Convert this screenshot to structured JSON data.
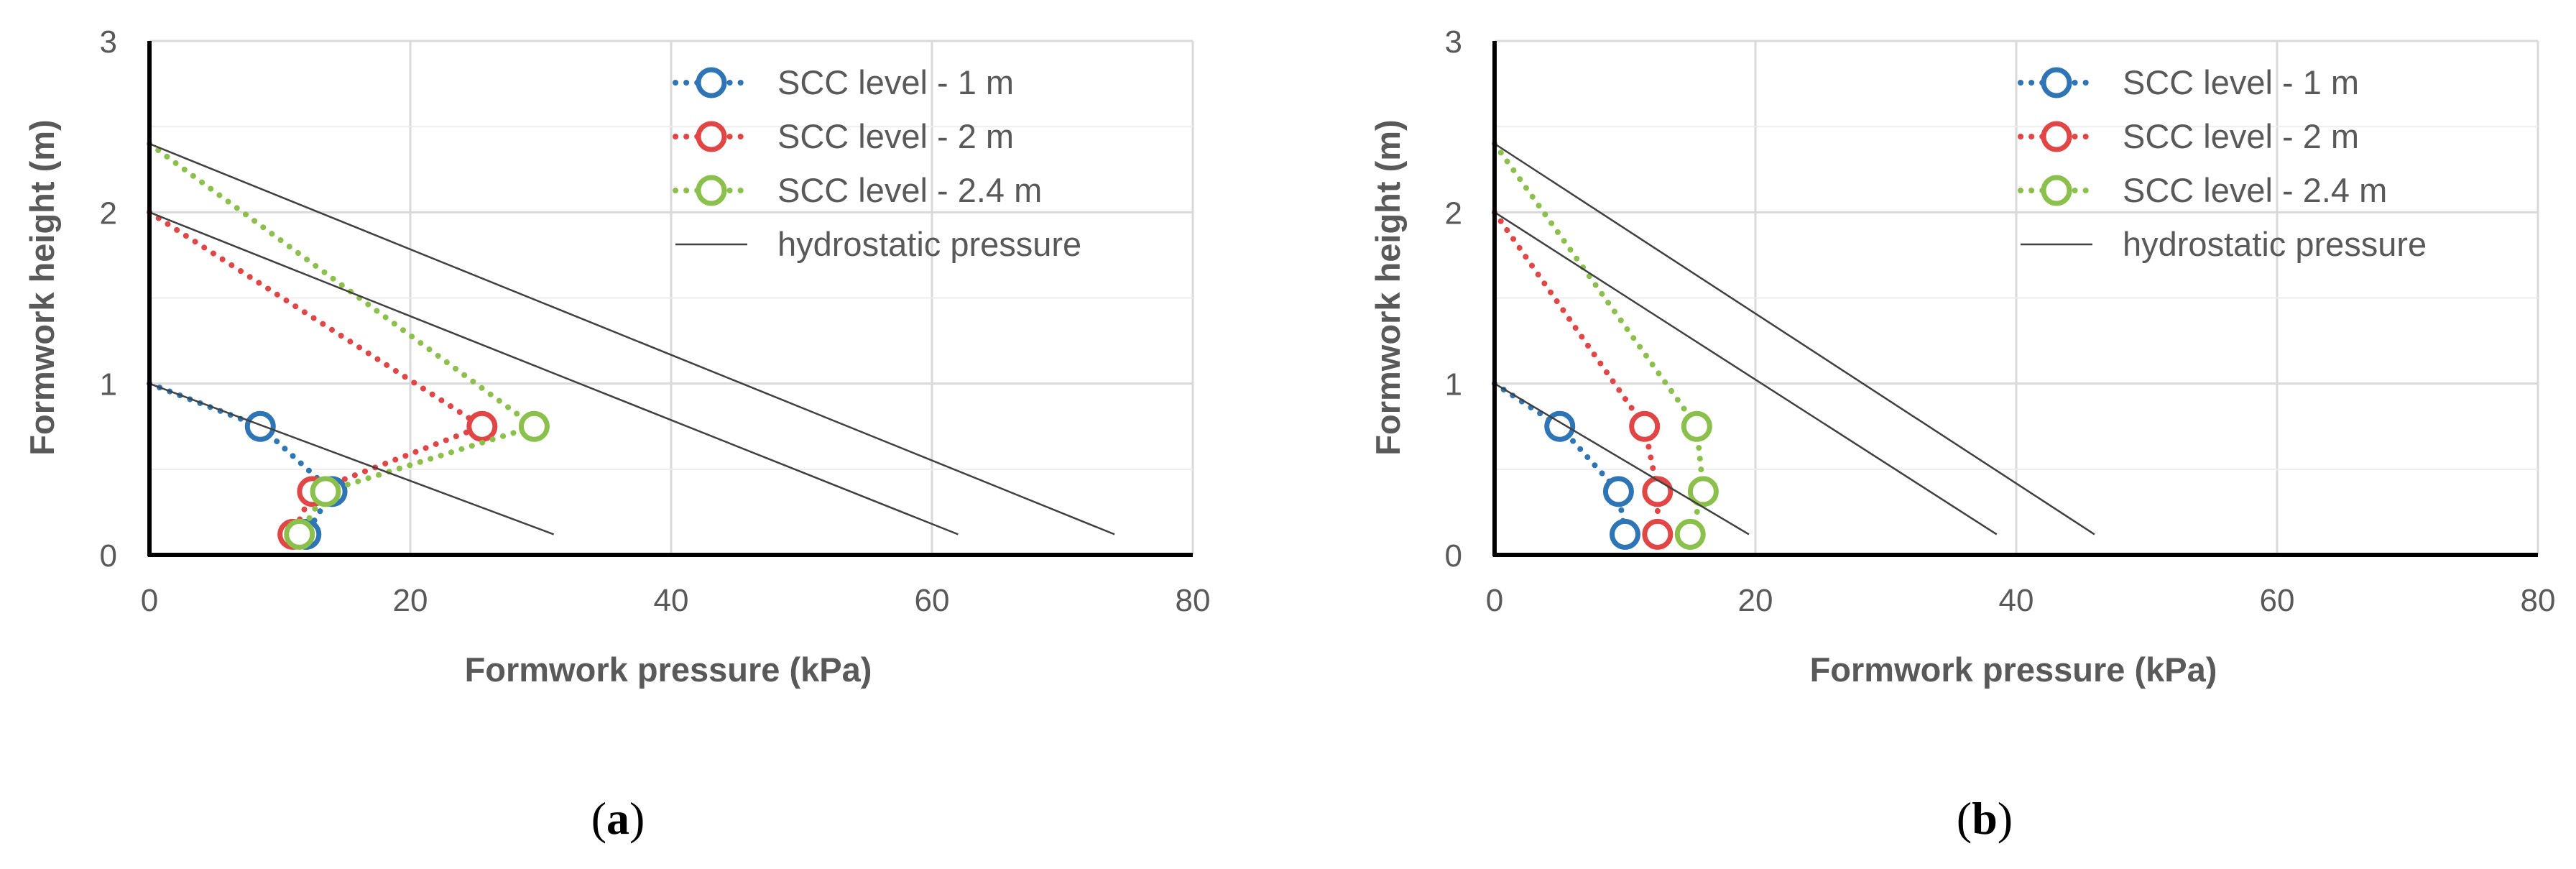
{
  "colors": {
    "scc_1m": "#2E75B6",
    "scc_2m": "#E04646",
    "scc_24m": "#8CC04C",
    "hydro": "#404040",
    "grid": "#D9D9D9",
    "axis": "#000000",
    "text": "#595959"
  },
  "chart_data": [
    {
      "type": "scatter",
      "panel_label": "a",
      "xlabel": "Formwork pressure (kPa)",
      "ylabel": "Formwork height (m)",
      "xlim": [
        0,
        80
      ],
      "ylim": [
        0,
        3
      ],
      "xticks": [
        "0",
        "20",
        "40",
        "60",
        "80"
      ],
      "yticks": [
        "0",
        "1",
        "2",
        "3"
      ],
      "legend_position": "top-right",
      "series": [
        {
          "name": "SCC level - 1 m",
          "style": "dotted-markers",
          "color_key": "scc_1m",
          "points": [
            [
              0,
              1.0
            ],
            [
              8.5,
              0.75
            ],
            [
              14,
              0.37
            ],
            [
              12,
              0.12
            ]
          ]
        },
        {
          "name": "SCC level - 2 m",
          "style": "dotted-markers",
          "color_key": "scc_2m",
          "points": [
            [
              0,
              2.0
            ],
            [
              25.5,
              0.75
            ],
            [
              12.5,
              0.37
            ],
            [
              11,
              0.12
            ]
          ]
        },
        {
          "name": "SCC level - 2.4 m",
          "style": "dotted-markers",
          "color_key": "scc_24m",
          "points": [
            [
              0,
              2.4
            ],
            [
              29.5,
              0.75
            ],
            [
              13.5,
              0.37
            ],
            [
              11.5,
              0.12
            ]
          ]
        },
        {
          "name": "hydrostatic pressure",
          "style": "line",
          "color_key": "hydro",
          "segments": [
            [
              [
                0,
                1.0
              ],
              [
                31,
                0.12
              ]
            ],
            [
              [
                0,
                2.0
              ],
              [
                62,
                0.12
              ]
            ],
            [
              [
                0,
                2.4
              ],
              [
                74,
                0.12
              ]
            ]
          ]
        }
      ]
    },
    {
      "type": "scatter",
      "panel_label": "b",
      "xlabel": "Formwork pressure (kPa)",
      "ylabel": "Formwork height (m)",
      "xlim": [
        0,
        80
      ],
      "ylim": [
        0,
        3
      ],
      "xticks": [
        "0",
        "20",
        "40",
        "60",
        "80"
      ],
      "yticks": [
        "0",
        "1",
        "2",
        "3"
      ],
      "legend_position": "top-right",
      "series": [
        {
          "name": "SCC level - 1 m",
          "style": "dotted-markers",
          "color_key": "scc_1m",
          "points": [
            [
              0,
              1.0
            ],
            [
              5,
              0.75
            ],
            [
              9.5,
              0.37
            ],
            [
              10,
              0.12
            ]
          ]
        },
        {
          "name": "SCC level - 2 m",
          "style": "dotted-markers",
          "color_key": "scc_2m",
          "points": [
            [
              0,
              2.0
            ],
            [
              11.5,
              0.75
            ],
            [
              12.5,
              0.37
            ],
            [
              12.5,
              0.12
            ]
          ]
        },
        {
          "name": "SCC level - 2.4 m",
          "style": "dotted-markers",
          "color_key": "scc_24m",
          "points": [
            [
              0,
              2.4
            ],
            [
              15.5,
              0.75
            ],
            [
              16,
              0.37
            ],
            [
              15,
              0.12
            ]
          ]
        },
        {
          "name": "hydrostatic pressure",
          "style": "line",
          "color_key": "hydro",
          "segments": [
            [
              [
                0,
                1.0
              ],
              [
                19.5,
                0.12
              ]
            ],
            [
              [
                0,
                2.0
              ],
              [
                38.5,
                0.12
              ]
            ],
            [
              [
                0,
                2.4
              ],
              [
                46,
                0.12
              ]
            ]
          ]
        }
      ]
    }
  ]
}
